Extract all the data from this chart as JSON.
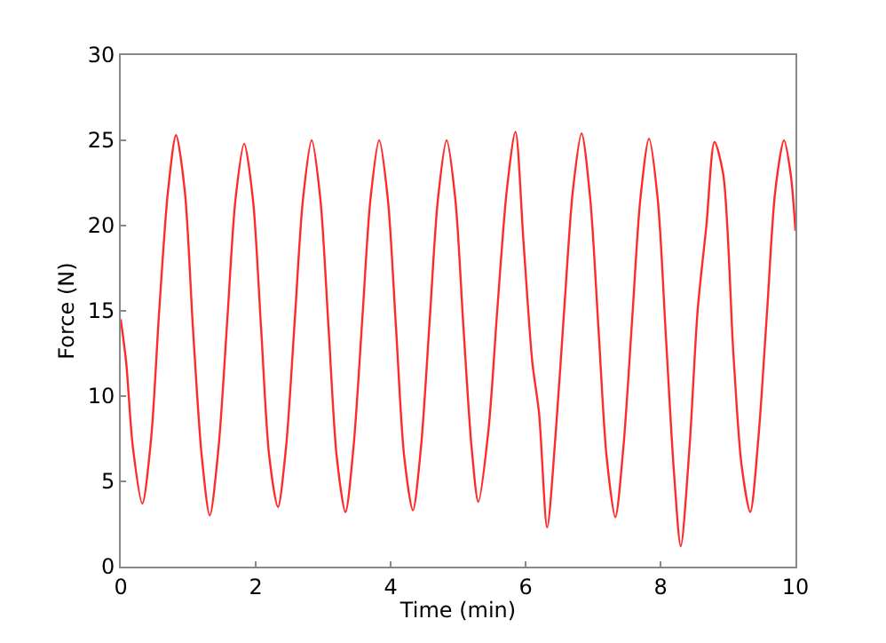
{
  "chart_data": {
    "type": "line",
    "xlabel": "Time (min)",
    "ylabel": "Force (N)",
    "xlim": [
      0,
      10
    ],
    "ylim": [
      0,
      30
    ],
    "xticks": [
      0,
      2,
      4,
      6,
      8,
      10
    ],
    "yticks": [
      0,
      5,
      10,
      15,
      20,
      25,
      30
    ],
    "series": [
      {
        "color": "#ff2a2a",
        "x": [
          0,
          0.08,
          0.18,
          0.32,
          0.45,
          0.57,
          0.7,
          0.82,
          0.95,
          1.07,
          1.2,
          1.32,
          1.45,
          1.58,
          1.7,
          1.83,
          1.96,
          2.08,
          2.2,
          2.33,
          2.45,
          2.58,
          2.7,
          2.83,
          2.96,
          3.08,
          3.2,
          3.33,
          3.45,
          3.58,
          3.7,
          3.83,
          3.96,
          4.08,
          4.2,
          4.33,
          4.45,
          4.58,
          4.7,
          4.83,
          4.96,
          5.08,
          5.2,
          5.3,
          5.45,
          5.58,
          5.72,
          5.85,
          5.97,
          6.1,
          6.2,
          6.32,
          6.45,
          6.58,
          6.7,
          6.83,
          6.96,
          7.08,
          7.2,
          7.33,
          7.45,
          7.58,
          7.7,
          7.83,
          7.96,
          8.08,
          8.2,
          8.3,
          8.43,
          8.55,
          8.68,
          8.8,
          8.93,
          9.08,
          9.2,
          9.33,
          9.45,
          9.58,
          9.7,
          9.83,
          9.93,
          10
        ],
        "values": [
          14.5,
          12,
          7,
          3.7,
          7.5,
          15,
          22,
          25.3,
          22,
          14,
          6.5,
          3.0,
          7,
          14.5,
          21.5,
          24.8,
          21.5,
          14,
          6.5,
          3.5,
          7,
          14.5,
          21.5,
          25.0,
          21.5,
          14,
          6.5,
          3.2,
          7,
          14.5,
          21.5,
          25.0,
          21.5,
          14,
          6.5,
          3.3,
          7,
          14.5,
          21.5,
          25.0,
          21.5,
          14,
          7,
          3.8,
          8,
          15,
          22,
          25.5,
          19,
          12,
          9,
          2.3,
          8,
          15.5,
          22,
          25.4,
          21.5,
          14,
          6.5,
          2.9,
          7,
          14.5,
          21.5,
          25.1,
          21.5,
          13.5,
          5.5,
          1.2,
          7,
          15,
          20,
          24.9,
          23,
          12.5,
          6,
          3.2,
          7.5,
          15,
          22,
          25.0,
          23,
          19.7
        ]
      }
    ]
  }
}
